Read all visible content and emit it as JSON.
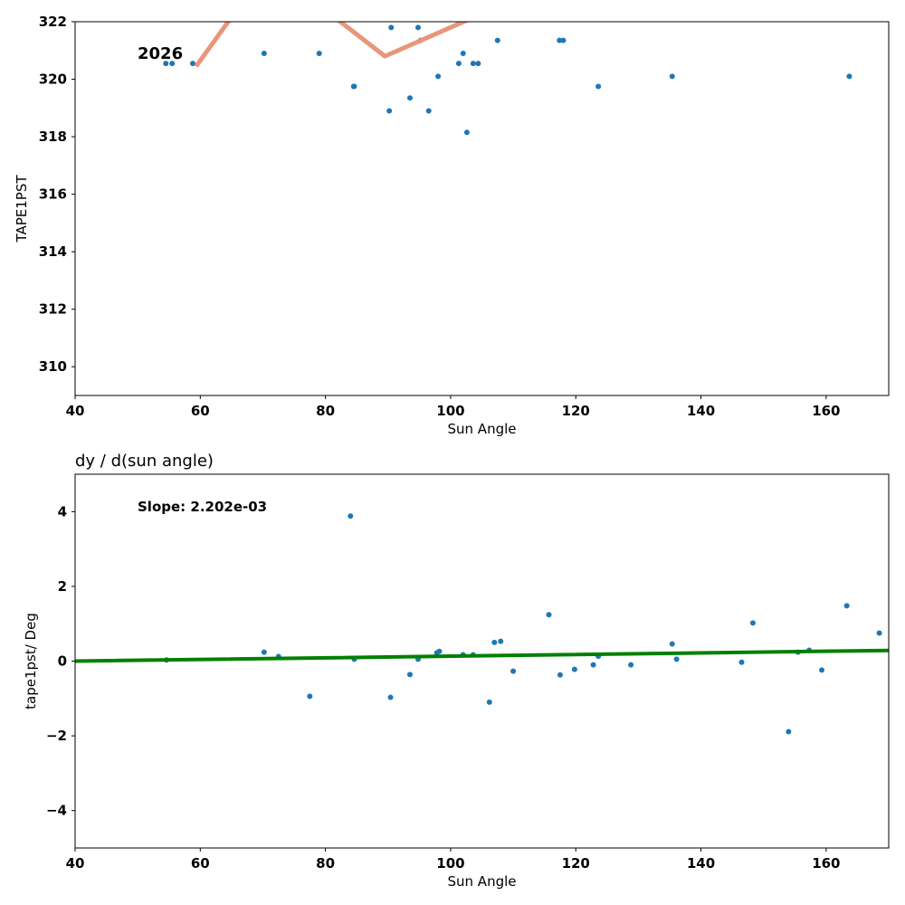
{
  "chart_data": [
    {
      "type": "scatter",
      "title": "",
      "xlabel": "Sun Angle",
      "ylabel": "TAPE1PST",
      "xlim": [
        40,
        170
      ],
      "ylim": [
        309,
        322
      ],
      "xticks": [
        "40",
        "60",
        "80",
        "100",
        "120",
        "140",
        "160"
      ],
      "yticks": [
        "310",
        "312",
        "314",
        "316",
        "318",
        "320",
        "322"
      ],
      "annotation": "2026",
      "grid": false,
      "series": [
        {
          "kind": "points",
          "color": "#1f77b4",
          "points": [
            [
              54.5,
              320.55
            ],
            [
              55.5,
              320.55
            ],
            [
              58.8,
              320.55
            ],
            [
              70.2,
              320.9
            ],
            [
              79.0,
              320.9
            ],
            [
              84.5,
              319.75
            ],
            [
              84.6,
              319.75
            ],
            [
              90.2,
              318.9
            ],
            [
              90.5,
              321.8
            ],
            [
              93.5,
              319.35
            ],
            [
              94.8,
              321.8
            ],
            [
              95.2,
              321.35
            ],
            [
              96.5,
              318.9
            ],
            [
              98.0,
              320.1
            ],
            [
              101.3,
              320.55
            ],
            [
              102.0,
              320.9
            ],
            [
              102.6,
              318.15
            ],
            [
              103.6,
              320.55
            ],
            [
              104.4,
              320.55
            ],
            [
              107.5,
              321.35
            ],
            [
              117.4,
              321.35
            ],
            [
              118.0,
              321.35
            ],
            [
              123.6,
              319.75
            ],
            [
              135.4,
              320.1
            ],
            [
              163.7,
              320.1
            ]
          ]
        },
        {
          "kind": "line",
          "color": "#e8967a",
          "points": [
            [
              59.5,
              320.5
            ],
            [
              64.8,
              322.1
            ],
            [
              81.8,
              322.1
            ],
            [
              89.5,
              320.8
            ],
            [
              102.6,
              322.05
            ]
          ]
        }
      ]
    },
    {
      "type": "scatter",
      "title": "dy / d(sun angle)",
      "xlabel": "Sun Angle",
      "ylabel": "tape1pst/ Deg",
      "xlim": [
        40,
        170
      ],
      "ylim": [
        -5,
        5
      ],
      "xticks": [
        "40",
        "60",
        "80",
        "100",
        "120",
        "140",
        "160"
      ],
      "yticks": [
        "−4",
        "−2",
        "0",
        "2",
        "4"
      ],
      "annotation": "Slope: 2.202e-03",
      "grid": false,
      "series": [
        {
          "kind": "points",
          "color": "#1f77b4",
          "points": [
            [
              54.6,
              0.03
            ],
            [
              70.2,
              0.24
            ],
            [
              72.5,
              0.12
            ],
            [
              77.5,
              -0.94
            ],
            [
              84.0,
              3.88
            ],
            [
              84.6,
              0.05
            ],
            [
              90.4,
              -0.97
            ],
            [
              93.5,
              -0.36
            ],
            [
              94.8,
              0.05
            ],
            [
              97.8,
              0.22
            ],
            [
              98.2,
              0.26
            ],
            [
              102.0,
              0.17
            ],
            [
              103.6,
              0.17
            ],
            [
              106.2,
              -1.1
            ],
            [
              107.0,
              0.5
            ],
            [
              108.0,
              0.53
            ],
            [
              110.0,
              -0.27
            ],
            [
              115.7,
              1.24
            ],
            [
              117.5,
              -0.37
            ],
            [
              119.8,
              -0.22
            ],
            [
              122.8,
              -0.1
            ],
            [
              123.6,
              0.13
            ],
            [
              128.8,
              -0.1
            ],
            [
              135.4,
              0.46
            ],
            [
              136.1,
              0.05
            ],
            [
              146.5,
              -0.03
            ],
            [
              148.3,
              1.02
            ],
            [
              154.0,
              -1.89
            ],
            [
              155.5,
              0.24
            ],
            [
              157.3,
              0.29
            ],
            [
              159.3,
              -0.24
            ],
            [
              163.3,
              1.48
            ],
            [
              168.5,
              0.75
            ]
          ]
        },
        {
          "kind": "line",
          "color": "#008000",
          "points": [
            [
              40,
              0.0
            ],
            [
              170,
              0.286
            ]
          ]
        }
      ]
    }
  ]
}
